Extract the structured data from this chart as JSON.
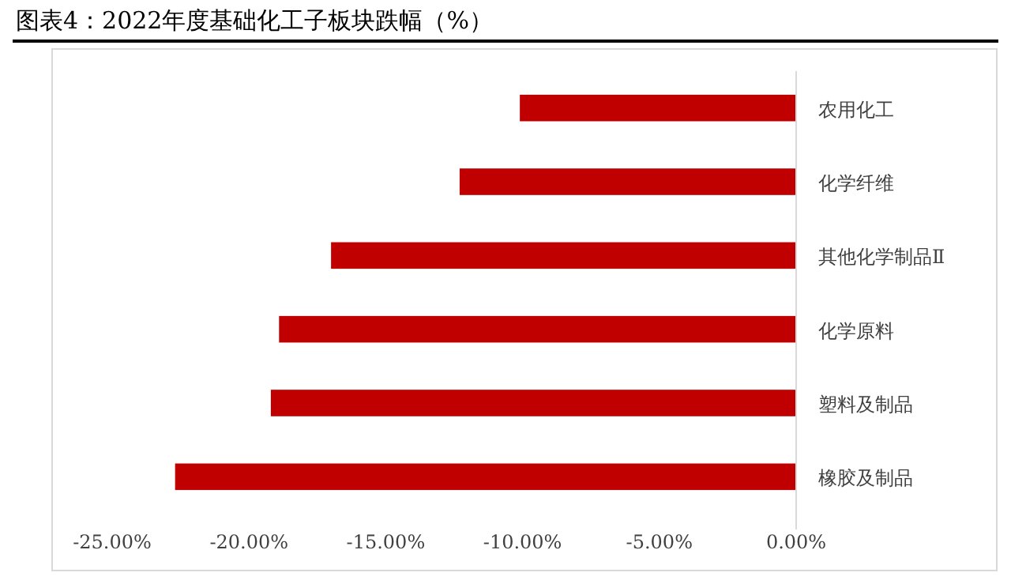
{
  "chart_data": {
    "type": "bar",
    "orientation": "horizontal",
    "title": "图表4：2022年度基础化工子板块跌幅（%）",
    "categories": [
      "农用化工",
      "化学纤维",
      "其他化学制品Ⅱ",
      "化学原料",
      "塑料及制品",
      "橡胶及制品"
    ],
    "values": [
      -10.1,
      -12.3,
      -17.0,
      -18.9,
      -19.2,
      -22.7
    ],
    "color": "#c00000",
    "xlim": [
      -25,
      0
    ],
    "xticks": [
      {
        "value": -25,
        "label": "-25.00%"
      },
      {
        "value": -20,
        "label": "-20.00%"
      },
      {
        "value": -15,
        "label": "-15.00%"
      },
      {
        "value": -10,
        "label": "-10.00%"
      },
      {
        "value": -5,
        "label": "-5.00%"
      },
      {
        "value": 0,
        "label": "0.00%"
      }
    ],
    "grid": false
  }
}
